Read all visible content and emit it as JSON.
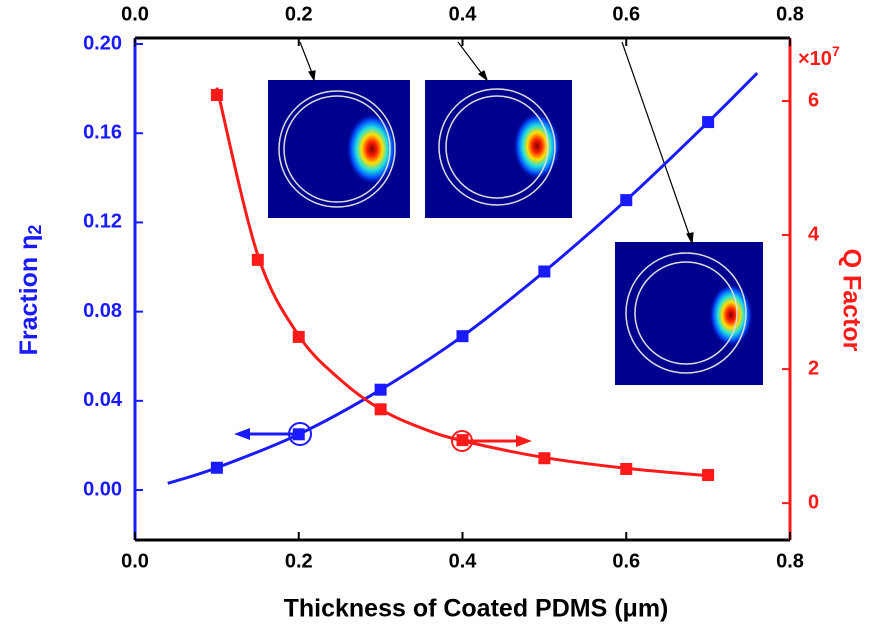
{
  "chart_data": {
    "type": "line",
    "x_label": "Thickness of Coated PDMS (μm)",
    "y_label": "Fraction η",
    "y_label_sub": "2",
    "y2_label": "Q Factor",
    "y2_multiplier": "×10",
    "y2_multiplier_exp": "7",
    "xlim": [
      0,
      0.8
    ],
    "xticks": [
      {
        "value": 0,
        "label": "0.0"
      },
      0.2,
      0.4,
      0.6,
      0.8
    ],
    "x2lim": [
      0,
      0.8
    ],
    "x2ticks": [
      {
        "value": 0,
        "label": "0.0"
      },
      0.2,
      0.4,
      0.6,
      0.8
    ],
    "ylim": [
      -0.0224,
      0.2027
    ],
    "yticks": [
      {
        "value": 0,
        "label": "0.00"
      },
      {
        "value": 0.04,
        "label": "0.04"
      },
      0.08,
      0.12,
      0.16,
      {
        "value": 0.2,
        "label": "0.20"
      }
    ],
    "y2lim": [
      -0.55,
      6.94
    ],
    "y2ticks": [
      0,
      2,
      4,
      6
    ],
    "series": [
      {
        "color": "#1a1aff",
        "marker": "square",
        "x": [
          0.1,
          0.2,
          0.3,
          0.4,
          0.5,
          0.6,
          0.7
        ],
        "values": [
          0.01,
          0.025,
          0.045,
          0.069,
          0.098,
          0.13,
          0.165
        ]
      },
      {
        "color": "#1a1aff",
        "marker": "none",
        "x": [
          0.04,
          0.1,
          0.2,
          0.3,
          0.4,
          0.5,
          0.6,
          0.7,
          0.76
        ],
        "values": [
          0.003,
          0.01,
          0.025,
          0.045,
          0.069,
          0.098,
          0.13,
          0.165,
          0.187
        ]
      },
      {
        "color": "#ff1a1a",
        "marker": "square",
        "axis": "y2",
        "x": [
          0.1,
          0.15,
          0.2,
          0.3,
          0.4,
          0.5,
          0.6,
          0.7
        ],
        "values": [
          6.09,
          3.63,
          2.48,
          1.4,
          0.94,
          0.67,
          0.51,
          0.42
        ]
      },
      {
        "color": "#ff1a1a",
        "marker": "none",
        "axis": "y2",
        "x": [
          0.1,
          0.15,
          0.2,
          0.25,
          0.3,
          0.35,
          0.4,
          0.5,
          0.6,
          0.7
        ],
        "values": [
          6.2,
          3.7,
          2.5,
          1.85,
          1.4,
          1.12,
          0.93,
          0.68,
          0.52,
          0.41
        ]
      }
    ]
  }
}
